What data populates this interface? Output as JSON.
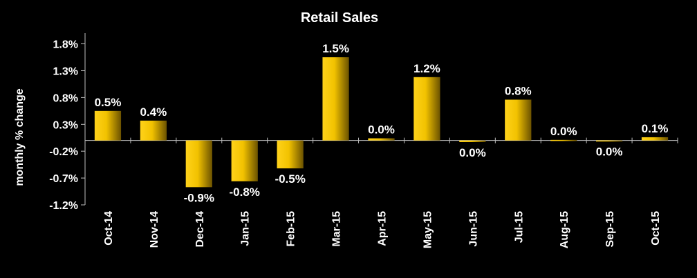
{
  "chart_data": {
    "type": "bar",
    "title": "Retail Sales",
    "xlabel": "",
    "ylabel": "monthly % change",
    "categories": [
      "Oct-14",
      "Nov-14",
      "Dec-14",
      "Jan-15",
      "Feb-15",
      "Mar-15",
      "Apr-15",
      "May-15",
      "Jun-15",
      "Jul-15",
      "Aug-15",
      "Sep-15",
      "Oct-15"
    ],
    "values": [
      0.55,
      0.37,
      -0.87,
      -0.76,
      -0.52,
      1.55,
      0.04,
      1.18,
      -0.03,
      0.76,
      0.01,
      -0.01,
      0.06
    ],
    "data_labels": [
      "0.5%",
      "0.4%",
      "-0.9%",
      "-0.8%",
      "-0.5%",
      "1.5%",
      "0.0%",
      "1.2%",
      "0.0%",
      "0.8%",
      "0.0%",
      "0.0%",
      "0.1%"
    ],
    "y_ticks": [
      1.8,
      1.3,
      0.8,
      0.3,
      -0.2,
      -0.7,
      -1.2
    ],
    "y_tick_labels": [
      "1.8%",
      "1.3%",
      "0.8%",
      "0.3%",
      "-0.2%",
      "-0.7%",
      "-1.2%"
    ],
    "ylim": [
      -1.2,
      2.0
    ],
    "grid": false,
    "legend": "none",
    "colors": {
      "background": "#000000",
      "bar_light": "#ffd21a",
      "bar_dark": "#6b5200",
      "text": "#ffffff",
      "axis": "#bfbfbf"
    }
  }
}
